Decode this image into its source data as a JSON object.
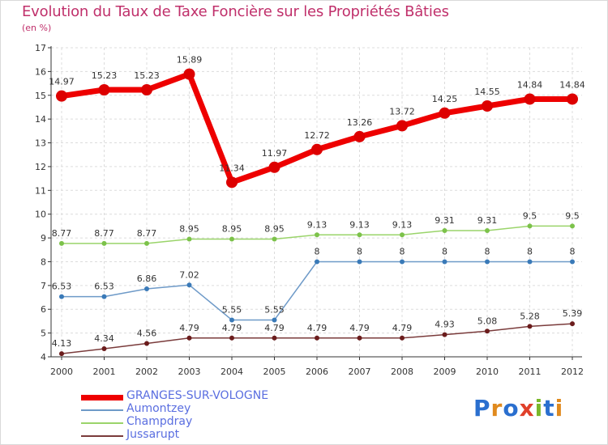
{
  "title": "Evolution du Taux de Taxe Foncière sur les Propriétés Bâties",
  "subtitle": "(en %)",
  "logo": {
    "text": "Proxiti",
    "colors": [
      "#2a6fcf",
      "#e08a1e",
      "#2a6fcf",
      "#e0402a",
      "#7ab82a",
      "#2a6fcf",
      "#e08a1e"
    ]
  },
  "chart_data": {
    "type": "line",
    "title": "Evolution du Taux de Taxe Foncière sur les Propriétés Bâties",
    "ylabel": "(en %)",
    "xlabel": "",
    "x": [
      "2000",
      "2001",
      "2002",
      "2003",
      "2004",
      "2005",
      "2006",
      "2007",
      "2008",
      "2009",
      "2010",
      "2011",
      "2012"
    ],
    "ylim": [
      4,
      17
    ],
    "yticks": [
      4,
      5,
      6,
      7,
      8,
      9,
      10,
      11,
      12,
      13,
      14,
      15,
      16,
      17
    ],
    "grid": true,
    "legend_position": "bottom-left",
    "series": [
      {
        "name": "GRANGES-SUR-VOLOGNE",
        "color": "#ee0000",
        "point_color": "#dd0000",
        "width": 7,
        "marker": 7,
        "values": [
          14.97,
          15.23,
          15.23,
          15.89,
          11.34,
          11.97,
          12.72,
          13.26,
          13.72,
          14.25,
          14.55,
          14.84,
          14.84
        ],
        "labels": [
          "14.97",
          "15.23",
          "15.23",
          "15.89",
          "11.34",
          "11.97",
          "12.72",
          "13.26",
          "13.72",
          "14.25",
          "14.55",
          "14.84",
          "14.84"
        ]
      },
      {
        "name": "Aumontzey",
        "color": "#6e9ac8",
        "point_color": "#3a7ab8",
        "width": 1.5,
        "marker": 3,
        "values": [
          6.53,
          6.53,
          6.86,
          7.02,
          5.55,
          5.55,
          8,
          8,
          8,
          8,
          8,
          8,
          8
        ],
        "labels": [
          "6.53",
          "6.53",
          "6.86",
          "7.02",
          "5.55",
          "5.55",
          "8",
          "8",
          "8",
          "8",
          "8",
          "8",
          "8"
        ]
      },
      {
        "name": "Champdray",
        "color": "#9ad46a",
        "point_color": "#7cc24a",
        "width": 1.5,
        "marker": 3,
        "values": [
          8.77,
          8.77,
          8.77,
          8.95,
          8.95,
          8.95,
          9.13,
          9.13,
          9.13,
          9.31,
          9.31,
          9.5,
          9.5
        ],
        "labels": [
          "8.77",
          "8.77",
          "8.77",
          "8.95",
          "8.95",
          "8.95",
          "9.13",
          "9.13",
          "9.13",
          "9.31",
          "9.31",
          "9.5",
          "9.5"
        ]
      },
      {
        "name": "Jussarupt",
        "color": "#7a3b3b",
        "point_color": "#6b1c1c",
        "width": 1.5,
        "marker": 3,
        "values": [
          4.13,
          4.34,
          4.56,
          4.79,
          4.79,
          4.79,
          4.79,
          4.79,
          4.79,
          4.93,
          5.08,
          5.28,
          5.39
        ],
        "labels": [
          "4.13",
          "4.34",
          "4.56",
          "4.79",
          "4.79",
          "4.79",
          "4.79",
          "4.79",
          "4.79",
          "4.93",
          "5.08",
          "5.28",
          "5.39"
        ]
      }
    ]
  }
}
